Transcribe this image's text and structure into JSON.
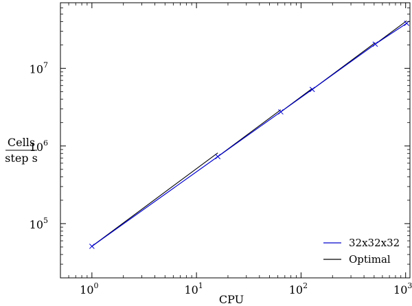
{
  "chart_data": {
    "type": "line",
    "xlabel": "CPU",
    "ylabel_numerator": "Cells",
    "ylabel_denominator": "step s",
    "xscale": "log",
    "yscale": "log",
    "xlim": [
      0.5,
      1100
    ],
    "ylim": [
      20000,
      70000000
    ],
    "xticks": [
      {
        "value": 1,
        "base": "10",
        "exp": "0"
      },
      {
        "value": 10,
        "base": "10",
        "exp": "1"
      },
      {
        "value": 100,
        "base": "10",
        "exp": "2"
      },
      {
        "value": 1000,
        "base": "10",
        "exp": "3"
      }
    ],
    "yticks": [
      {
        "value": 100000,
        "base": "10",
        "exp": "5"
      },
      {
        "value": 1000000,
        "base": "10",
        "exp": "6"
      },
      {
        "value": 10000000,
        "base": "10",
        "exp": "7"
      }
    ],
    "grid": false,
    "legend_position": "bottom-right",
    "series": [
      {
        "name": "32x32x32",
        "color": "#0000cc",
        "marker": "x",
        "x": [
          1,
          16,
          64,
          128,
          512,
          1024
        ],
        "y": [
          51000,
          730000,
          2750000,
          5350000,
          20500000,
          38000000
        ]
      },
      {
        "name": "Optimal",
        "color": "#000000",
        "marker": "none",
        "segments": [
          {
            "x": [
              1,
              16
            ],
            "y": [
              51000,
              816000
            ]
          },
          {
            "x": [
              16,
              64
            ],
            "y": [
              730000,
              2920000
            ]
          },
          {
            "x": [
              64,
              128
            ],
            "y": [
              2750000,
              5500000
            ]
          },
          {
            "x": [
              128,
              512
            ],
            "y": [
              5350000,
              21400000
            ]
          },
          {
            "x": [
              512,
              1024
            ],
            "y": [
              20500000,
              41000000
            ]
          }
        ]
      }
    ]
  }
}
